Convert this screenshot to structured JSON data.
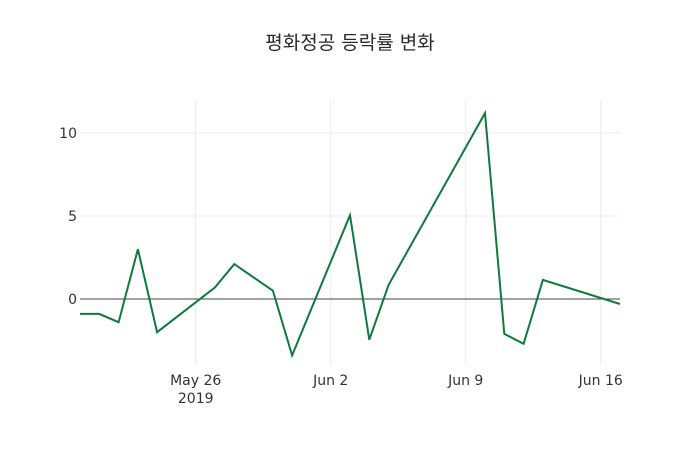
{
  "title": "평화정공 등락률 변화",
  "chart_data": {
    "type": "line",
    "title": "평화정공 등락률 변화",
    "xlabel": "",
    "ylabel": "",
    "x": [
      "2019-05-20",
      "2019-05-21",
      "2019-05-22",
      "2019-05-23",
      "2019-05-24",
      "2019-05-27",
      "2019-05-28",
      "2019-05-30",
      "2019-05-31",
      "2019-06-03",
      "2019-06-04",
      "2019-06-05",
      "2019-06-10",
      "2019-06-11",
      "2019-06-12",
      "2019-06-13",
      "2019-06-17"
    ],
    "series": [
      {
        "name": "등락률",
        "color": "#0f7a3c",
        "values": [
          -0.9,
          -0.9,
          -1.4,
          3.0,
          -2.0,
          0.7,
          2.1,
          0.5,
          -3.4,
          5.05,
          -2.45,
          0.85,
          11.2,
          -2.1,
          -2.7,
          1.15,
          -0.3
        ]
      }
    ],
    "x_ticks": [
      {
        "label": "May 26",
        "sublabel": "2019",
        "date": "2019-05-26"
      },
      {
        "label": "Jun 2",
        "date": "2019-06-02"
      },
      {
        "label": "Jun 9",
        "date": "2019-06-09"
      },
      {
        "label": "Jun 16",
        "date": "2019-06-16"
      }
    ],
    "y_ticks": [
      0,
      5,
      10
    ],
    "ylim": [
      -4.0,
      12.0
    ],
    "xlim": [
      "2019-05-20",
      "2019-06-17"
    ],
    "grid": true,
    "zero_line": true,
    "legend": "none"
  }
}
